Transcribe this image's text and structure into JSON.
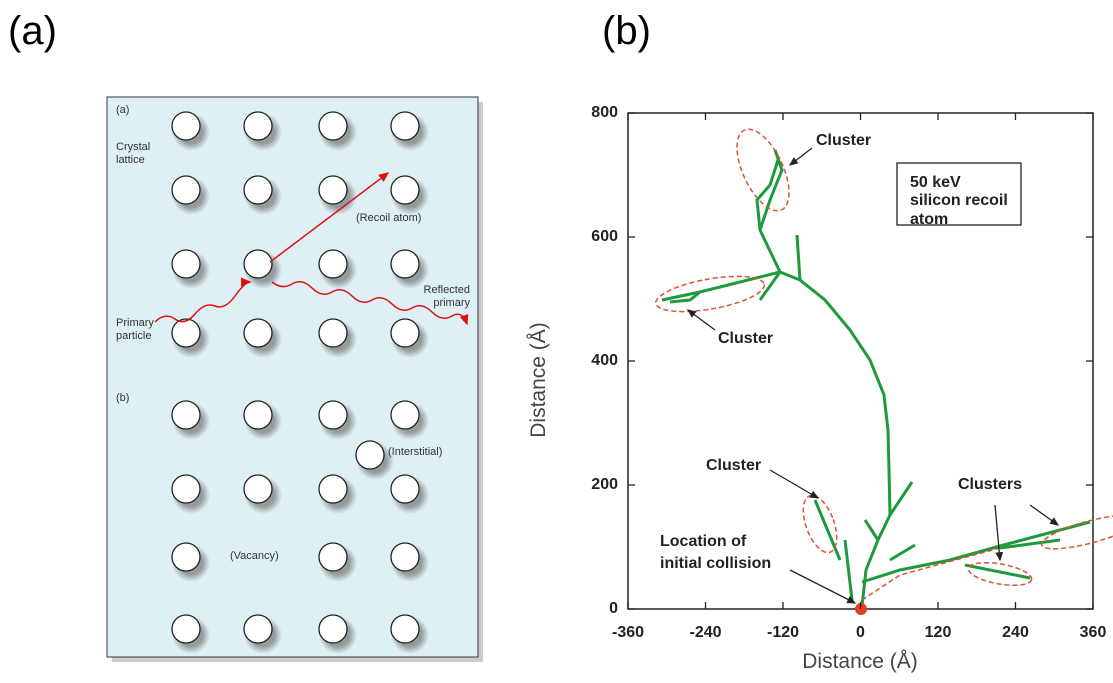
{
  "panel_labels": [
    "(a)",
    "(b)"
  ],
  "diagram": {
    "section_a": "(a)",
    "crystal_lattice": "Crystal lattice",
    "recoil_atom": "(Recoil atom)",
    "reflected_primary": "Reflected primary",
    "primary_particle": "Primary particle",
    "section_b": "(b)",
    "interstitial": "(Interstitial)",
    "vacancy": "(Vacancy)"
  },
  "chart_data": {
    "type": "trajectory",
    "xlabel": "Distance (Å)",
    "ylabel": "Distance (Å)",
    "xlim": [
      -360,
      360
    ],
    "ylim": [
      0,
      800
    ],
    "xticks": [
      -360,
      -240,
      -120,
      0,
      120,
      240,
      360
    ],
    "yticks": [
      0,
      200,
      400,
      600,
      800
    ],
    "info_box": "50 keV silicon recoil atom",
    "annotations": [
      "Cluster",
      "Cluster",
      "Cluster",
      "Clusters",
      "Location of initial collision"
    ]
  }
}
